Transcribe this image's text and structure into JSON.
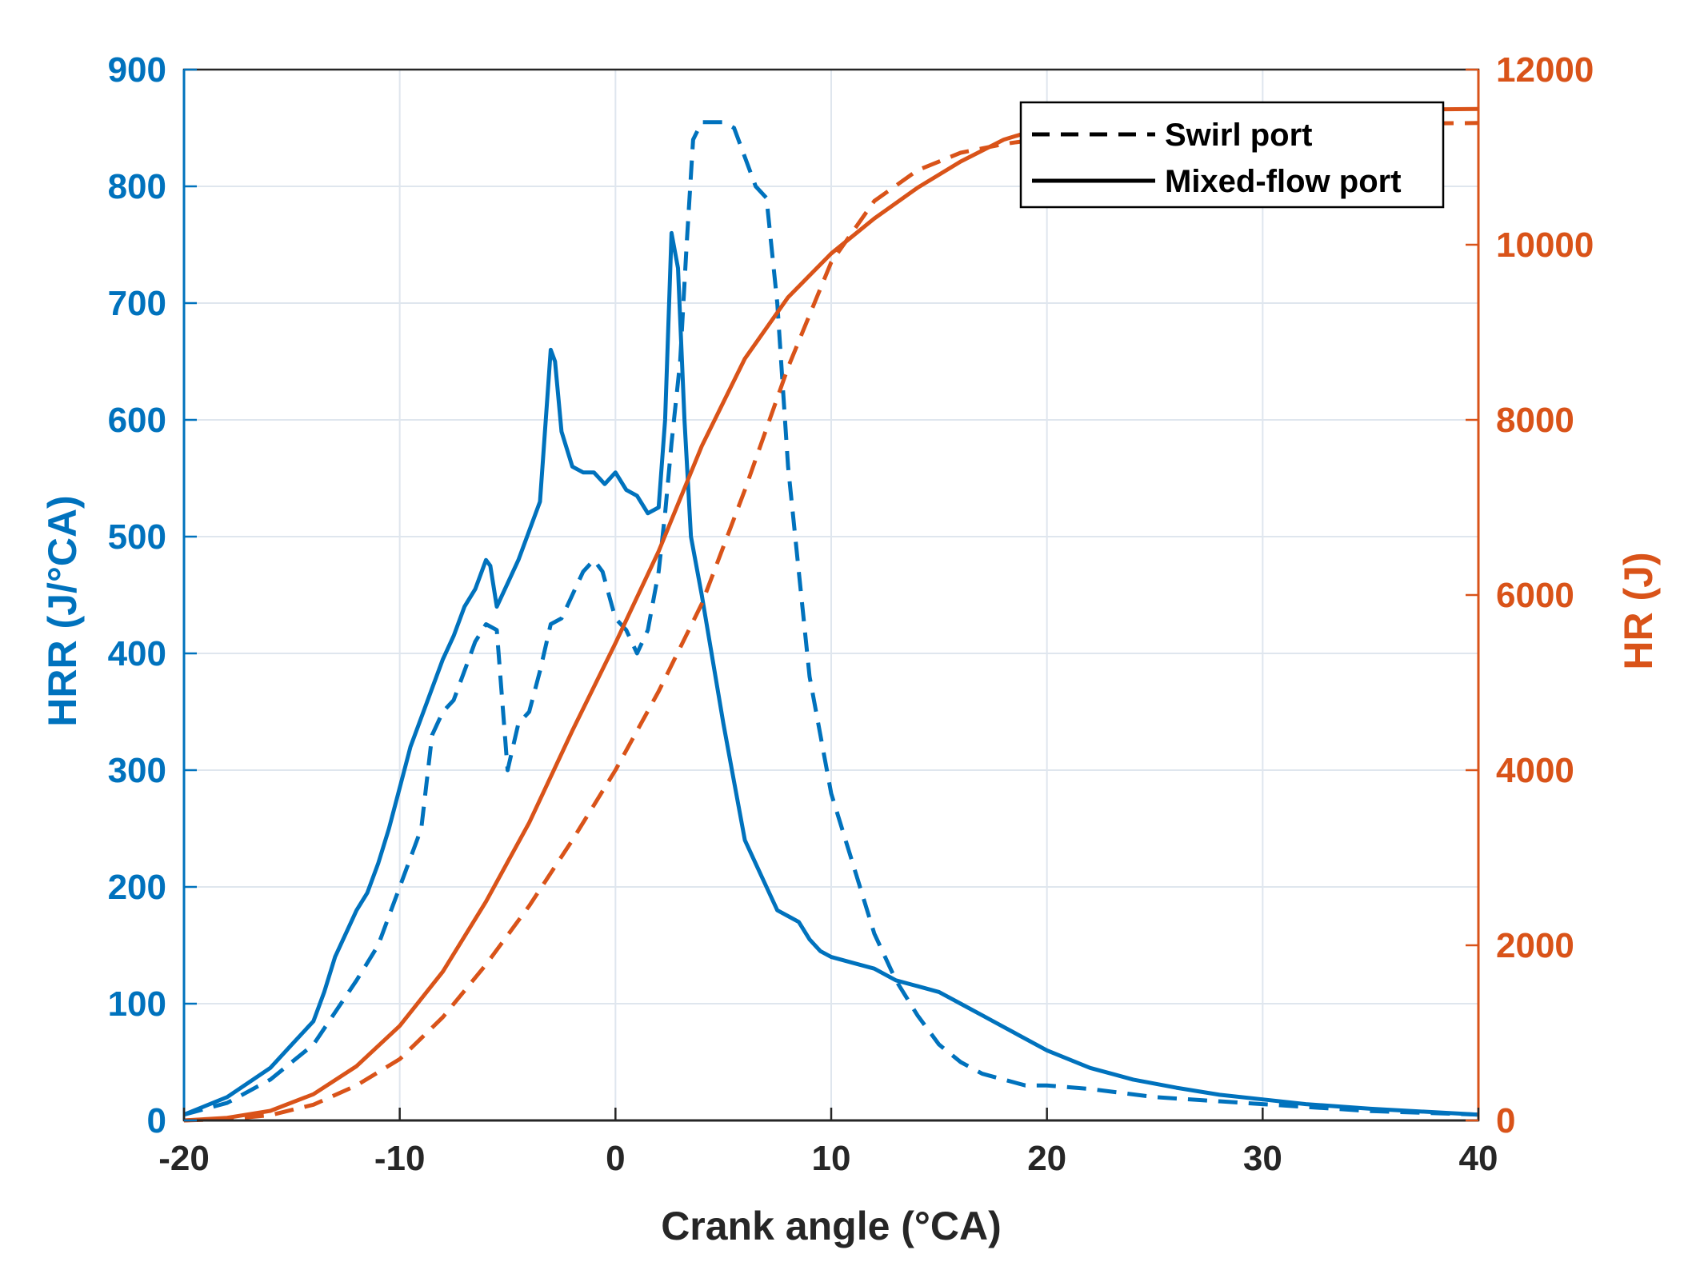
{
  "chart_data": {
    "type": "line",
    "title": "",
    "xlabel": "Crank angle (°CA)",
    "ylabel_left": "HRR (J/°CA)",
    "ylabel_right": "HR (J)",
    "xlim": [
      -20,
      40
    ],
    "ylim_left": [
      0,
      900
    ],
    "ylim_right": [
      0,
      12000
    ],
    "xticks": [
      -20,
      -10,
      0,
      10,
      20,
      30,
      40
    ],
    "yticks_left": [
      0,
      100,
      200,
      300,
      400,
      500,
      600,
      700,
      800,
      900
    ],
    "yticks_right": [
      0,
      2000,
      4000,
      6000,
      8000,
      10000,
      12000
    ],
    "grid": true,
    "legend_position": "top-right",
    "legend": [
      {
        "label": "Swirl port",
        "style": "dashed"
      },
      {
        "label": "Mixed-flow port",
        "style": "solid"
      }
    ],
    "colors": {
      "left_axis": "#0072BD",
      "right_axis": "#D95319",
      "legend_line": "#000000",
      "grid": "#DFE6EE"
    },
    "series": [
      {
        "name": "HRR Mixed-flow port",
        "axis": "left",
        "style": "solid",
        "x": [
          -20,
          -18,
          -16,
          -15,
          -14,
          -13.5,
          -13,
          -12,
          -11.5,
          -11,
          -10.5,
          -10,
          -9.5,
          -9,
          -8.5,
          -8,
          -7.5,
          -7,
          -6.5,
          -6,
          -5.8,
          -5.5,
          -5,
          -4.5,
          -4,
          -3.5,
          -3,
          -2.8,
          -2.5,
          -2,
          -1.5,
          -1,
          -0.5,
          0,
          0.5,
          1,
          1.5,
          2,
          2.3,
          2.6,
          2.9,
          3.2,
          3.5,
          4,
          4.5,
          5,
          5.5,
          6,
          6.5,
          7,
          7.5,
          8,
          8.5,
          9,
          9.5,
          10,
          11,
          12,
          13,
          14,
          15,
          16,
          17,
          18,
          20,
          22,
          24,
          26,
          28,
          30,
          32,
          35,
          38,
          40
        ],
        "y": [
          5,
          20,
          45,
          65,
          85,
          110,
          140,
          180,
          195,
          220,
          250,
          285,
          320,
          345,
          370,
          395,
          415,
          440,
          455,
          480,
          475,
          440,
          460,
          480,
          505,
          530,
          660,
          650,
          590,
          560,
          555,
          555,
          545,
          555,
          540,
          535,
          520,
          525,
          600,
          760,
          730,
          600,
          500,
          450,
          395,
          340,
          290,
          240,
          220,
          200,
          180,
          175,
          170,
          155,
          145,
          140,
          135,
          130,
          120,
          115,
          110,
          100,
          90,
          80,
          60,
          45,
          35,
          28,
          22,
          18,
          14,
          10,
          7,
          5
        ]
      },
      {
        "name": "HRR Swirl port",
        "axis": "left",
        "style": "dashed",
        "x": [
          -20,
          -18,
          -16,
          -14,
          -12,
          -11,
          -10,
          -9,
          -8.5,
          -8,
          -7.5,
          -7,
          -6.5,
          -6,
          -5.5,
          -5,
          -4.5,
          -4,
          -3.5,
          -3,
          -2.5,
          -2,
          -1.5,
          -1,
          -0.6,
          -0.3,
          0,
          0.5,
          1,
          1.5,
          2,
          2.3,
          2.6,
          3,
          3.3,
          3.6,
          4,
          4.5,
          5,
          5.5,
          6,
          6.5,
          7,
          7.5,
          8,
          8.5,
          9,
          9.5,
          10,
          11,
          12,
          13,
          14,
          15,
          16,
          17,
          18,
          19,
          20,
          22,
          25,
          30,
          35,
          40
        ],
        "y": [
          5,
          15,
          35,
          65,
          120,
          150,
          200,
          250,
          330,
          350,
          360,
          385,
          410,
          425,
          420,
          300,
          340,
          350,
          385,
          425,
          430,
          450,
          470,
          480,
          470,
          450,
          430,
          420,
          400,
          420,
          470,
          520,
          580,
          650,
          750,
          840,
          855,
          855,
          855,
          850,
          825,
          800,
          790,
          700,
          560,
          470,
          380,
          330,
          280,
          220,
          160,
          120,
          90,
          65,
          50,
          40,
          35,
          30,
          30,
          27,
          20,
          14,
          8,
          5
        ]
      },
      {
        "name": "HR Mixed-flow port",
        "axis": "right",
        "style": "solid",
        "x": [
          -20,
          -18,
          -16,
          -14,
          -12,
          -10,
          -8,
          -6,
          -4,
          -2,
          0,
          2,
          4,
          6,
          8,
          10,
          12,
          14,
          16,
          18,
          20,
          22,
          25,
          30,
          35,
          40
        ],
        "y": [
          0,
          30,
          110,
          300,
          620,
          1080,
          1700,
          2500,
          3400,
          4450,
          5450,
          6500,
          7700,
          8700,
          9400,
          9900,
          10300,
          10650,
          10950,
          11200,
          11350,
          11450,
          11500,
          11530,
          11540,
          11550
        ]
      },
      {
        "name": "HR Swirl port",
        "axis": "right",
        "style": "dashed",
        "x": [
          -20,
          -18,
          -16,
          -14,
          -12,
          -10,
          -8,
          -6,
          -4,
          -2,
          0,
          2,
          4,
          6,
          8,
          10,
          12,
          14,
          16,
          18,
          20,
          22,
          25,
          30,
          35,
          40
        ],
        "y": [
          0,
          15,
          60,
          180,
          400,
          700,
          1180,
          1780,
          2450,
          3200,
          4000,
          4900,
          5900,
          7200,
          8600,
          9800,
          10500,
          10850,
          11050,
          11150,
          11220,
          11270,
          11320,
          11360,
          11380,
          11390
        ]
      }
    ]
  }
}
